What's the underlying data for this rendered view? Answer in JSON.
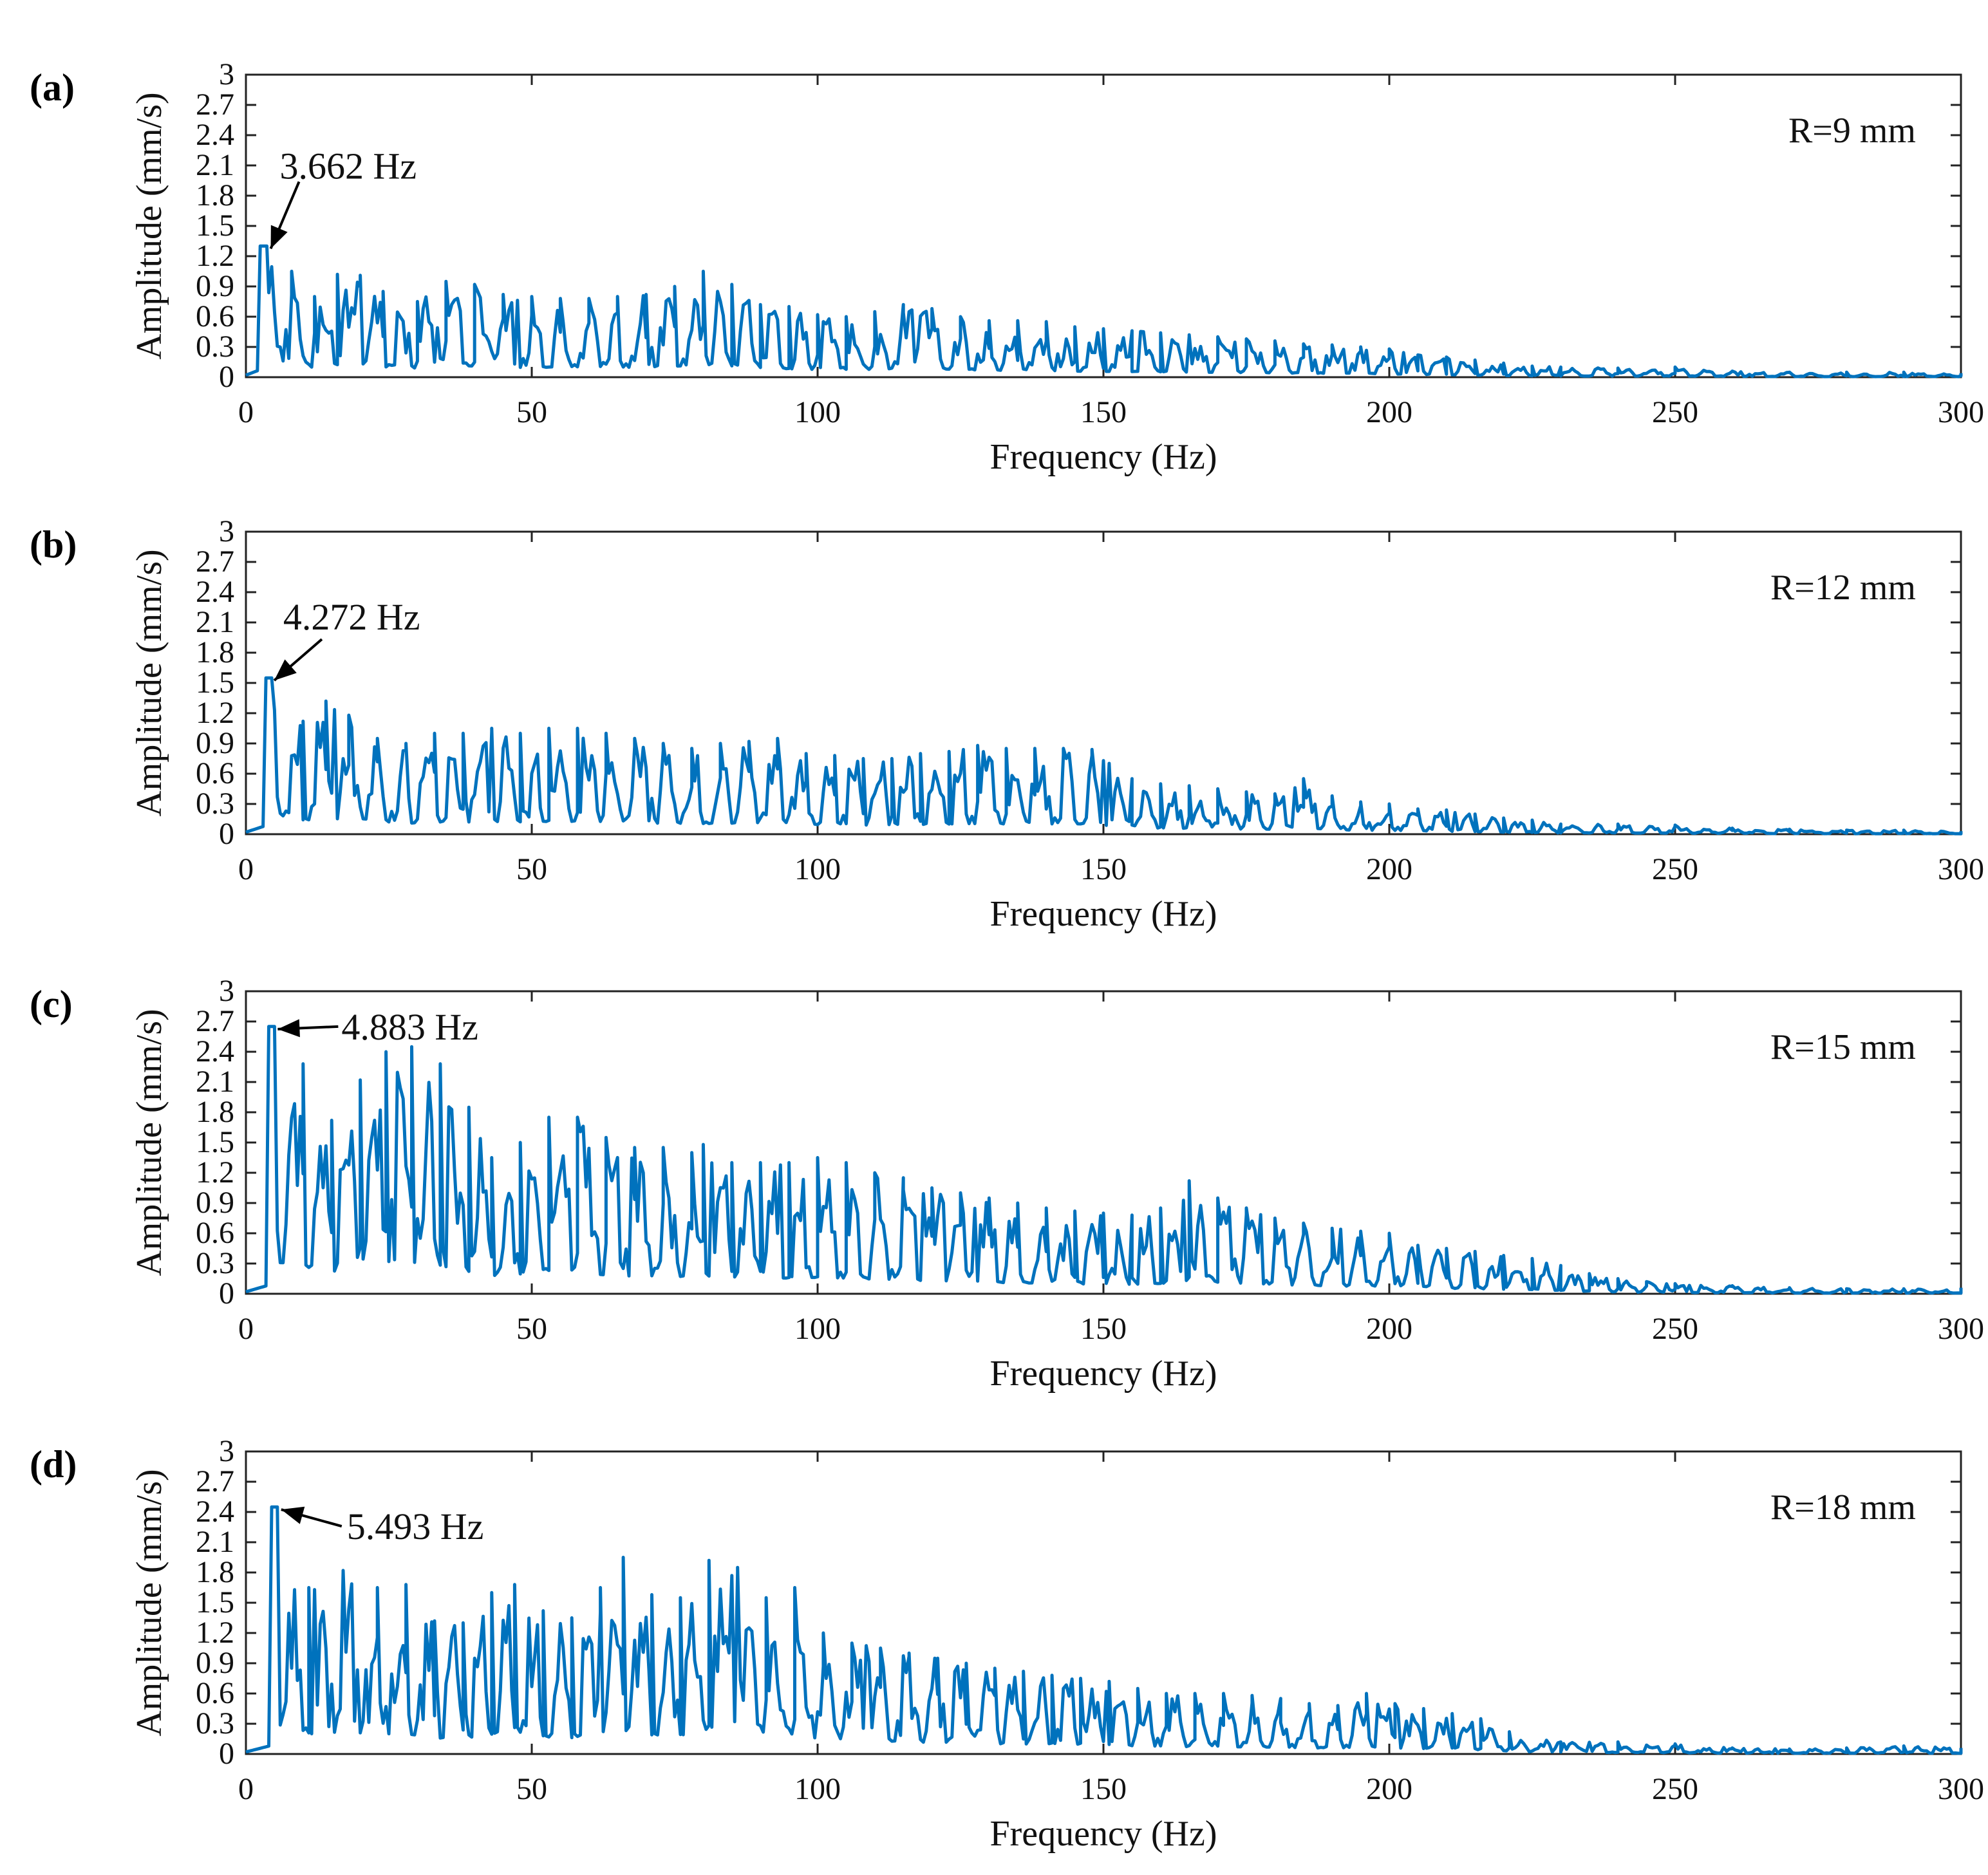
{
  "chart_data": [
    {
      "type": "line",
      "panel_label": "(a)",
      "legend_label": "R=9 mm",
      "xlabel": "Frequency (Hz)",
      "ylabel": "Amplitude (mm/s)",
      "xlim": [
        0,
        300
      ],
      "ylim": [
        0,
        3
      ],
      "xticks": [
        "0",
        "50",
        "100",
        "150",
        "200",
        "250",
        "300"
      ],
      "yticks": [
        "0",
        "0.3",
        "0.6",
        "0.9",
        "1.2",
        "1.5",
        "1.8",
        "2.1",
        "2.4",
        "2.7",
        "3"
      ],
      "line_color": "#0072BD",
      "annotation": {
        "text": "3.662 Hz",
        "x": 3.662,
        "y": 1.3
      },
      "peaks": [
        [
          3.662,
          1.3
        ],
        [
          8,
          1.05
        ],
        [
          12,
          0.8
        ],
        [
          16,
          1.02
        ],
        [
          20,
          1.01
        ],
        [
          24,
          0.85
        ],
        [
          30,
          0.75
        ],
        [
          35,
          0.95
        ],
        [
          40,
          0.92
        ],
        [
          45,
          0.82
        ],
        [
          50,
          0.8
        ],
        [
          55,
          0.78
        ],
        [
          60,
          0.78
        ],
        [
          65,
          0.8
        ],
        [
          70,
          0.82
        ],
        [
          75,
          0.9
        ],
        [
          80,
          1.05
        ],
        [
          85,
          0.92
        ],
        [
          90,
          0.72
        ],
        [
          95,
          0.7
        ],
        [
          100,
          0.62
        ],
        [
          105,
          0.6
        ],
        [
          110,
          0.65
        ],
        [
          115,
          0.72
        ],
        [
          120,
          0.68
        ],
        [
          125,
          0.6
        ],
        [
          130,
          0.56
        ],
        [
          135,
          0.56
        ],
        [
          140,
          0.55
        ],
        [
          145,
          0.5
        ],
        [
          150,
          0.48
        ],
        [
          155,
          0.46
        ],
        [
          160,
          0.44
        ],
        [
          165,
          0.42
        ],
        [
          170,
          0.4
        ],
        [
          175,
          0.38
        ],
        [
          180,
          0.36
        ],
        [
          185,
          0.33
        ],
        [
          190,
          0.32
        ],
        [
          195,
          0.3
        ],
        [
          200,
          0.28
        ],
        [
          205,
          0.22
        ],
        [
          210,
          0.2
        ],
        [
          215,
          0.17
        ],
        [
          220,
          0.14
        ],
        [
          225,
          0.11
        ],
        [
          230,
          0.1
        ],
        [
          240,
          0.09
        ],
        [
          250,
          0.1
        ],
        [
          260,
          0.06
        ],
        [
          270,
          0.05
        ],
        [
          280,
          0.05
        ],
        [
          290,
          0.05
        ],
        [
          300,
          0.04
        ]
      ]
    },
    {
      "type": "line",
      "panel_label": "(b)",
      "legend_label": "R=12 mm",
      "xlabel": "Frequency (Hz)",
      "ylabel": "Amplitude (mm/s)",
      "xlim": [
        0,
        300
      ],
      "ylim": [
        0,
        3
      ],
      "xticks": [
        "0",
        "50",
        "100",
        "150",
        "200",
        "250",
        "300"
      ],
      "yticks": [
        "0",
        "0.3",
        "0.6",
        "0.9",
        "1.2",
        "1.5",
        "1.8",
        "2.1",
        "2.4",
        "2.7",
        "3"
      ],
      "line_color": "#0072BD",
      "annotation": {
        "text": "4.272 Hz",
        "x": 4.272,
        "y": 1.55
      },
      "peaks": [
        [
          4.272,
          1.55
        ],
        [
          10,
          1.12
        ],
        [
          14,
          1.32
        ],
        [
          18,
          1.18
        ],
        [
          23,
          0.95
        ],
        [
          28,
          0.9
        ],
        [
          33,
          1.0
        ],
        [
          38,
          1.0
        ],
        [
          43,
          1.05
        ],
        [
          48,
          1.0
        ],
        [
          53,
          1.05
        ],
        [
          58,
          1.05
        ],
        [
          63,
          1.0
        ],
        [
          68,
          0.95
        ],
        [
          73,
          0.9
        ],
        [
          78,
          0.85
        ],
        [
          83,
          0.9
        ],
        [
          88,
          0.92
        ],
        [
          93,
          0.95
        ],
        [
          98,
          0.8
        ],
        [
          103,
          0.78
        ],
        [
          108,
          0.75
        ],
        [
          113,
          0.75
        ],
        [
          118,
          0.8
        ],
        [
          123,
          0.82
        ],
        [
          128,
          0.88
        ],
        [
          133,
          0.85
        ],
        [
          138,
          0.85
        ],
        [
          143,
          0.85
        ],
        [
          148,
          0.84
        ],
        [
          155,
          0.55
        ],
        [
          160,
          0.5
        ],
        [
          165,
          0.48
        ],
        [
          170,
          0.45
        ],
        [
          175,
          0.42
        ],
        [
          180,
          0.4
        ],
        [
          185,
          0.55
        ],
        [
          190,
          0.38
        ],
        [
          195,
          0.32
        ],
        [
          200,
          0.3
        ],
        [
          205,
          0.25
        ],
        [
          210,
          0.24
        ],
        [
          215,
          0.2
        ],
        [
          220,
          0.16
        ],
        [
          225,
          0.14
        ],
        [
          230,
          0.1
        ],
        [
          240,
          0.1
        ],
        [
          250,
          0.09
        ],
        [
          260,
          0.06
        ],
        [
          270,
          0.05
        ],
        [
          280,
          0.04
        ],
        [
          290,
          0.04
        ],
        [
          300,
          0.03
        ]
      ]
    },
    {
      "type": "line",
      "panel_label": "(c)",
      "legend_label": "R=15 mm",
      "xlabel": "Frequency (Hz)",
      "ylabel": "Amplitude (mm/s)",
      "xlim": [
        0,
        300
      ],
      "ylim": [
        0,
        3
      ],
      "xticks": [
        "0",
        "50",
        "100",
        "150",
        "200",
        "250",
        "300"
      ],
      "yticks": [
        "0",
        "0.3",
        "0.6",
        "0.9",
        "1.2",
        "1.5",
        "1.8",
        "2.1",
        "2.4",
        "2.7",
        "3"
      ],
      "line_color": "#0072BD",
      "annotation": {
        "text": "4.883 Hz",
        "x": 4.883,
        "y": 2.65
      },
      "peaks": [
        [
          4.883,
          2.65
        ],
        [
          10,
          2.28
        ],
        [
          15,
          1.72
        ],
        [
          20,
          2.12
        ],
        [
          24.5,
          2.4
        ],
        [
          29,
          2.45
        ],
        [
          34,
          2.28
        ],
        [
          39,
          1.85
        ],
        [
          43,
          1.35
        ],
        [
          48,
          1.5
        ],
        [
          53,
          1.75
        ],
        [
          58,
          1.75
        ],
        [
          63,
          1.55
        ],
        [
          68,
          1.45
        ],
        [
          73,
          1.45
        ],
        [
          78,
          1.4
        ],
        [
          80,
          1.48
        ],
        [
          85,
          1.3
        ],
        [
          90,
          1.3
        ],
        [
          95,
          1.3
        ],
        [
          100,
          1.35
        ],
        [
          105,
          1.3
        ],
        [
          110,
          1.2
        ],
        [
          115,
          1.15
        ],
        [
          120,
          1.05
        ],
        [
          125,
          1.0
        ],
        [
          130,
          0.95
        ],
        [
          135,
          0.9
        ],
        [
          140,
          0.85
        ],
        [
          145,
          0.82
        ],
        [
          150,
          0.8
        ],
        [
          155,
          0.78
        ],
        [
          160,
          0.85
        ],
        [
          165,
          1.12
        ],
        [
          170,
          0.95
        ],
        [
          175,
          0.85
        ],
        [
          180,
          0.75
        ],
        [
          185,
          0.7
        ],
        [
          190,
          0.65
        ],
        [
          195,
          0.62
        ],
        [
          200,
          0.6
        ],
        [
          205,
          0.48
        ],
        [
          210,
          0.45
        ],
        [
          215,
          0.42
        ],
        [
          220,
          0.38
        ],
        [
          225,
          0.35
        ],
        [
          230,
          0.28
        ],
        [
          235,
          0.2
        ],
        [
          240,
          0.15
        ],
        [
          245,
          0.12
        ],
        [
          250,
          0.1
        ],
        [
          260,
          0.08
        ],
        [
          270,
          0.06
        ],
        [
          280,
          0.05
        ],
        [
          290,
          0.05
        ],
        [
          300,
          0.06
        ]
      ]
    },
    {
      "type": "line",
      "panel_label": "(d)",
      "legend_label": "R=18 mm",
      "xlabel": "Frequency (Hz)",
      "ylabel": "Amplitude (mm/s)",
      "xlim": [
        0,
        300
      ],
      "ylim": [
        0,
        3
      ],
      "xticks": [
        "0",
        "50",
        "100",
        "150",
        "200",
        "250",
        "300"
      ],
      "yticks": [
        "0",
        "0.3",
        "0.6",
        "0.9",
        "1.2",
        "1.5",
        "1.8",
        "2.1",
        "2.4",
        "2.7",
        "3"
      ],
      "line_color": "#0072BD",
      "annotation": {
        "text": "5.493 Hz",
        "x": 5.493,
        "y": 2.45
      },
      "peaks": [
        [
          5.493,
          2.45
        ],
        [
          11,
          1.65
        ],
        [
          17,
          1.82
        ],
        [
          23,
          1.65
        ],
        [
          28,
          1.68
        ],
        [
          33,
          1.32
        ],
        [
          38,
          1.3
        ],
        [
          43,
          1.6
        ],
        [
          47,
          1.68
        ],
        [
          52,
          1.42
        ],
        [
          57,
          1.35
        ],
        [
          62,
          1.65
        ],
        [
          66,
          1.95
        ],
        [
          71,
          1.58
        ],
        [
          76,
          1.55
        ],
        [
          81,
          1.92
        ],
        [
          86,
          1.85
        ],
        [
          91,
          1.55
        ],
        [
          96,
          1.65
        ],
        [
          101,
          1.2
        ],
        [
          106,
          1.1
        ],
        [
          111,
          1.05
        ],
        [
          116,
          1.0
        ],
        [
          121,
          0.95
        ],
        [
          126,
          0.9
        ],
        [
          131,
          0.85
        ],
        [
          136,
          0.82
        ],
        [
          141,
          0.78
        ],
        [
          146,
          0.75
        ],
        [
          151,
          0.72
        ],
        [
          156,
          0.65
        ],
        [
          161,
          0.6
        ],
        [
          166,
          0.6
        ],
        [
          171,
          0.6
        ],
        [
          176,
          0.58
        ],
        [
          181,
          0.55
        ],
        [
          186,
          0.5
        ],
        [
          191,
          0.48
        ],
        [
          196,
          0.6
        ],
        [
          201,
          0.5
        ],
        [
          206,
          0.45
        ],
        [
          211,
          0.4
        ],
        [
          216,
          0.35
        ],
        [
          221,
          0.22
        ],
        [
          230,
          0.12
        ],
        [
          240,
          0.12
        ],
        [
          250,
          0.1
        ],
        [
          260,
          0.06
        ],
        [
          270,
          0.05
        ],
        [
          280,
          0.06
        ],
        [
          290,
          0.08
        ],
        [
          300,
          0.06
        ]
      ]
    }
  ]
}
